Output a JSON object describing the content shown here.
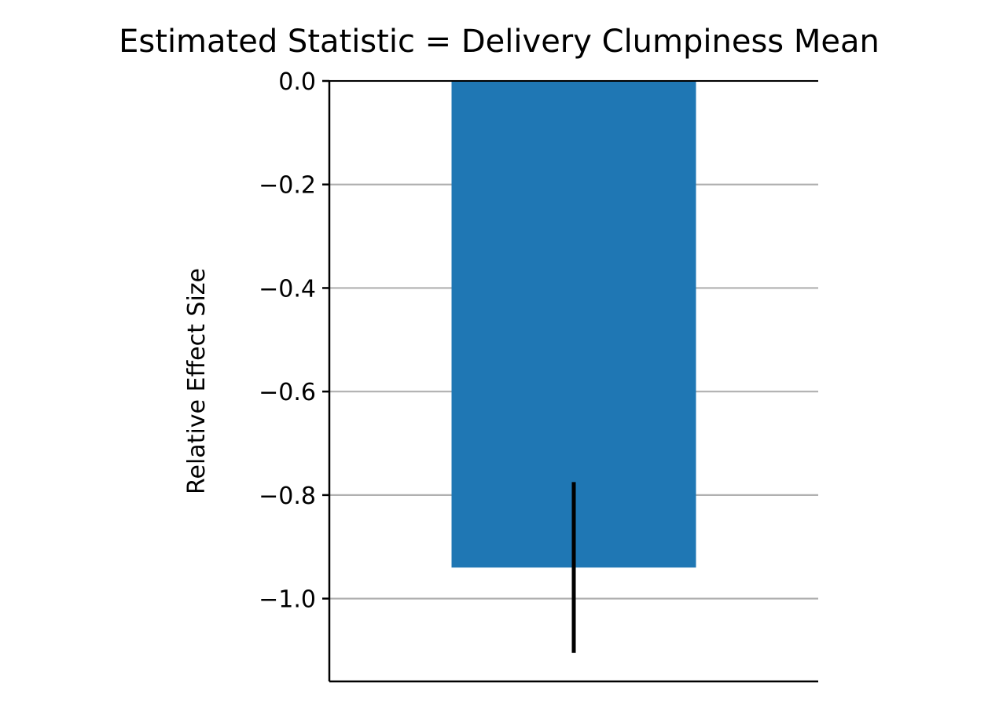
{
  "chart_data": {
    "type": "bar",
    "title": "Estimated Statistic = Delivery Clumpiness Mean",
    "xlabel": "",
    "ylabel": "Relative Effect Size",
    "categories": [
      ""
    ],
    "values": [
      -0.94
    ],
    "error_interval": [
      [
        -1.105,
        -0.775
      ]
    ],
    "ylim": [
      -1.16,
      0.0
    ],
    "yticks": [
      0.0,
      -0.2,
      -0.4,
      -0.6,
      -0.8,
      -1.0
    ],
    "ytick_labels": [
      "0.0",
      "−0.2",
      "−0.4",
      "−0.6",
      "−0.8",
      "−1.0"
    ],
    "grid": "horizontal",
    "legend": "none",
    "colors": {
      "bar": "#1f77b4",
      "error_bar": "#000000",
      "grid": "#b0b0b0",
      "axis": "#000000"
    }
  }
}
